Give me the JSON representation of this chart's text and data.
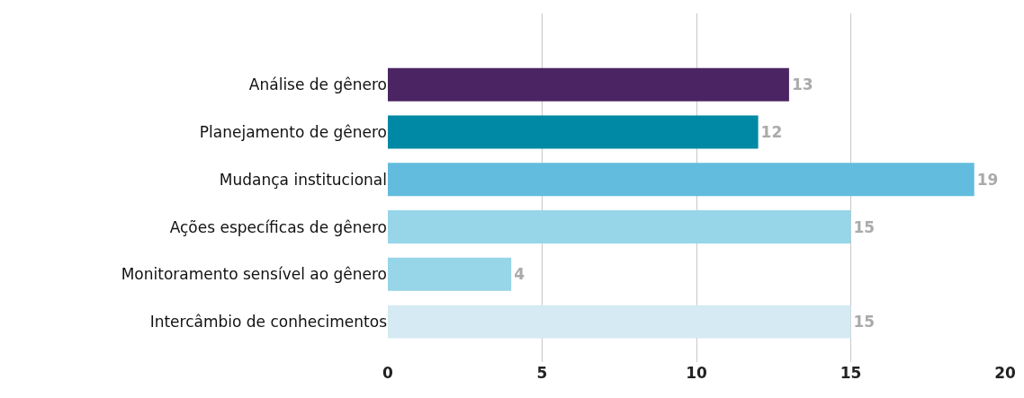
{
  "chart_data": {
    "type": "bar",
    "orientation": "horizontal",
    "categories": [
      "Análise de gênero",
      "Planejamento de gênero",
      "Mudança institucional",
      "Ações específicas de gênero",
      "Monitoramento sensível ao gênero",
      "Intercâmbio de conhecimentos"
    ],
    "values": [
      13,
      12,
      19,
      15,
      4,
      15
    ],
    "colors": [
      "#4b2563",
      "#0089a4",
      "#62bcdd",
      "#97d5e8",
      "#97d5e8",
      "#d5eaf3"
    ],
    "xlim": [
      0,
      20
    ],
    "xticks": [
      0,
      5,
      10,
      15,
      20
    ],
    "grid": "x",
    "data_labels": true,
    "legend": false
  }
}
